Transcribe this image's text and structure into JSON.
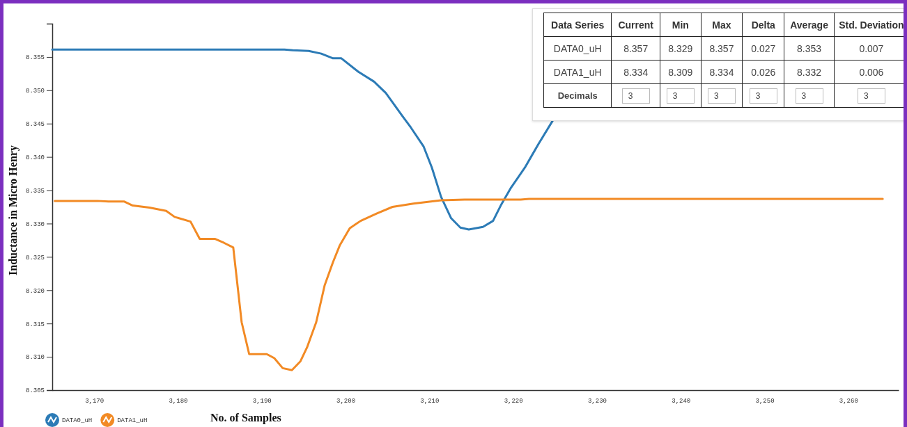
{
  "chart_data": {
    "type": "line",
    "xlabel": "No. of Samples",
    "ylabel": "Inductance in Micro Henry",
    "xlim": [
      3165,
      3266
    ],
    "xticks": [
      {
        "value": 3170,
        "label": "3,170"
      },
      {
        "value": 3180,
        "label": "3,180"
      },
      {
        "value": 3190,
        "label": "3,190"
      },
      {
        "value": 3200,
        "label": "3,200"
      },
      {
        "value": 3210,
        "label": "3,210"
      },
      {
        "value": 3220,
        "label": "3,220"
      },
      {
        "value": 3230,
        "label": "3,230"
      },
      {
        "value": 3240,
        "label": "3,240"
      },
      {
        "value": 3250,
        "label": "3,250"
      },
      {
        "value": 3260,
        "label": "3,260"
      }
    ],
    "ylim": [
      8.305,
      8.36
    ],
    "yticks": [
      8.305,
      {
        "value": 8.31,
        "label": "8.310"
      },
      8.315,
      {
        "value": 8.32,
        "label": "8.320"
      },
      8.325,
      {
        "value": 8.33,
        "label": "8.330"
      },
      8.335,
      {
        "value": 8.34,
        "label": "8.340"
      },
      8.345,
      {
        "value": 8.35,
        "label": "8.350"
      },
      8.355,
      {
        "value": 8.36,
        "label": null
      }
    ],
    "grid": false,
    "legend": "bottom left",
    "marker": "none",
    "line_style": "solid",
    "series": [
      {
        "name": "DATA0_uH",
        "color": "#2c7bb6",
        "x": [
          3165,
          3183.8,
          3192.7,
          3193.7,
          3195.6,
          3197.1,
          3198.5,
          3199.5,
          3201.5,
          3203.4,
          3204.8,
          3206.8,
          3207.8,
          3209.3,
          3210.3,
          3211.4,
          3212.6,
          3213.7,
          3214.7,
          3216.4,
          3217.6,
          3218.6,
          3219.7,
          3221.4,
          3223,
          3224.7
        ],
        "values": [
          8.3561,
          8.3561,
          8.3561,
          8.356,
          8.3559,
          8.3555,
          8.3548,
          8.3548,
          8.3528,
          8.3513,
          8.3496,
          8.3461,
          8.3444,
          8.3416,
          8.3384,
          8.334,
          8.3308,
          8.3294,
          8.3291,
          8.3295,
          8.3304,
          8.3329,
          8.3353,
          8.3384,
          8.3419,
          8.3454
        ]
      },
      {
        "name": "DATA1_uH",
        "color": "#f28a24",
        "x": [
          3165.3,
          3170.4,
          3171.7,
          3173.6,
          3174.6,
          3176.6,
          3178.6,
          3179.6,
          3181.5,
          3182.6,
          3184.4,
          3185.5,
          3186.6,
          3187.6,
          3188.5,
          3190.6,
          3191.5,
          3192.5,
          3193.6,
          3194.6,
          3195.4,
          3196.5,
          3197.5,
          3198.5,
          3199.3,
          3200.5,
          3201.8,
          3203.7,
          3205.6,
          3208.1,
          3211.4,
          3214.2,
          3220.9,
          3221.9,
          3264.1
        ],
        "values": [
          8.3334,
          8.3334,
          8.3333,
          8.3333,
          8.3327,
          8.3324,
          8.3319,
          8.331,
          8.3303,
          8.3277,
          8.3277,
          8.3271,
          8.3264,
          8.3152,
          8.3104,
          8.3104,
          8.3098,
          8.3083,
          8.308,
          8.3093,
          8.3114,
          8.3152,
          8.3207,
          8.3242,
          8.3267,
          8.3293,
          8.3304,
          8.3315,
          8.3325,
          8.333,
          8.3335,
          8.3336,
          8.3336,
          8.3337,
          8.3337
        ]
      }
    ],
    "annotations": [
      "Data Series",
      "Current",
      "Min",
      "Max",
      "Delta",
      "Average",
      "Std. Deviation",
      "DATA0_uH",
      "8.357",
      "8.329",
      "8.357",
      "0.027",
      "8.353",
      "0.007",
      "DATA1_uH",
      "8.334",
      "8.309",
      "8.334",
      "0.026",
      "8.332",
      "0.006",
      "Decimals",
      "3",
      "3",
      "3",
      "3",
      "3",
      "3"
    ]
  }
}
